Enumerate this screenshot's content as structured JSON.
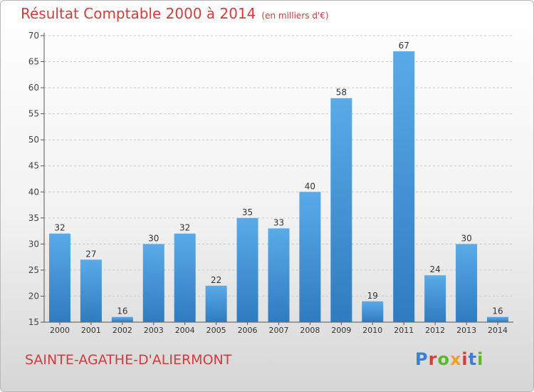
{
  "title": "Résultat Comptable 2000 à 2014",
  "unit": "(en milliers d'€)",
  "commune": "SAINTE-AGATHE-D'ALIERMONT",
  "logo": {
    "text": "Proxiti",
    "colors": [
      "#3a7fd6",
      "#e03a3a",
      "#58b830",
      "#f0a020",
      "#d63a3a",
      "#3a7fd6",
      "#58b830"
    ]
  },
  "colors": {
    "bar_top": "#5aaae8",
    "bar_bottom": "#2f7bbf",
    "title": "#d63a3a",
    "grid": "#c8c8c8"
  },
  "chart_data": {
    "type": "bar",
    "title": "Résultat Comptable 2000 à 2014",
    "ylabel": "en milliers d'€",
    "categories": [
      "2000",
      "2001",
      "2002",
      "2003",
      "2004",
      "2005",
      "2006",
      "2007",
      "2008",
      "2009",
      "2010",
      "2011",
      "2012",
      "2013",
      "2014"
    ],
    "values": [
      32,
      27,
      16,
      30,
      32,
      22,
      35,
      33,
      40,
      58,
      19,
      67,
      24,
      30,
      16
    ],
    "ylim": [
      15,
      70
    ],
    "yticks": [
      15,
      20,
      25,
      30,
      35,
      40,
      45,
      50,
      55,
      60,
      65,
      70
    ],
    "grid": true
  }
}
